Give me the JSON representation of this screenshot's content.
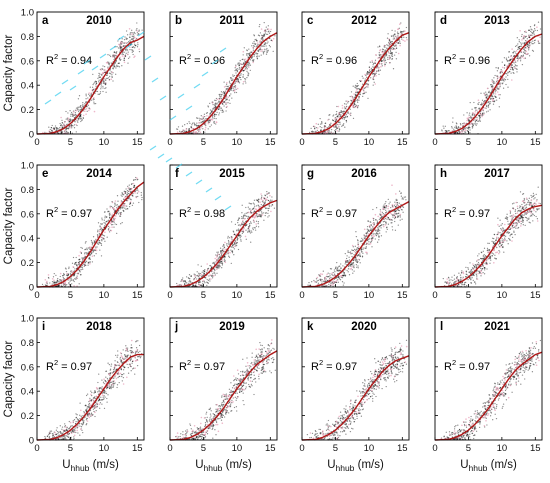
{
  "chart_data": {
    "type": "scatter",
    "layout": "4x3 grid of panels",
    "shared_xlabel_main": "U",
    "shared_xlabel_sub": "hhub",
    "shared_xlabel_unit": "(m/s)",
    "shared_ylabel": "Capacity factor",
    "xlim": [
      0,
      16
    ],
    "ylim": [
      0,
      1.0
    ],
    "x_ticks": [
      0,
      5,
      10,
      15
    ],
    "y_ticks": [
      "0",
      "0.2",
      "0.4",
      "0.6",
      "0.8",
      "1.0"
    ],
    "grid": false,
    "colors": {
      "points": "#000000",
      "points_secondary": "#e8a0b8",
      "curve": "#b01818",
      "highlight": "#33ccee"
    },
    "r2_prefix": "R",
    "r2_exp": "2",
    "curve_x": [
      0,
      2,
      3,
      4,
      5,
      6,
      7,
      8,
      9,
      10,
      11,
      12,
      13,
      14,
      15,
      16
    ],
    "panels": [
      {
        "letter": "a",
        "year": "2010",
        "r2_value": " = 0.94",
        "curve_y": [
          0,
          0.005,
          0.02,
          0.045,
          0.085,
          0.14,
          0.21,
          0.29,
          0.38,
          0.47,
          0.55,
          0.63,
          0.7,
          0.75,
          0.77,
          0.8
        ]
      },
      {
        "letter": "b",
        "year": "2011",
        "r2_value": " = 0.96",
        "curve_y": [
          0,
          0.005,
          0.02,
          0.045,
          0.085,
          0.14,
          0.21,
          0.29,
          0.38,
          0.47,
          0.55,
          0.63,
          0.7,
          0.76,
          0.8,
          0.83
        ]
      },
      {
        "letter": "c",
        "year": "2012",
        "r2_value": " = 0.96",
        "curve_y": [
          0,
          0.005,
          0.02,
          0.045,
          0.085,
          0.14,
          0.21,
          0.29,
          0.38,
          0.47,
          0.55,
          0.63,
          0.7,
          0.76,
          0.81,
          0.83
        ]
      },
      {
        "letter": "d",
        "year": "2013",
        "r2_value": " = 0.96",
        "curve_y": [
          0,
          0.005,
          0.02,
          0.045,
          0.085,
          0.14,
          0.21,
          0.29,
          0.38,
          0.47,
          0.55,
          0.63,
          0.7,
          0.76,
          0.8,
          0.82
        ]
      },
      {
        "letter": "e",
        "year": "2014",
        "r2_value": " = 0.97",
        "curve_y": [
          0,
          0.005,
          0.02,
          0.045,
          0.085,
          0.14,
          0.21,
          0.29,
          0.38,
          0.47,
          0.55,
          0.63,
          0.7,
          0.76,
          0.82,
          0.86
        ]
      },
      {
        "letter": "f",
        "year": "2015",
        "r2_value": " = 0.98",
        "curve_y": [
          0,
          0.005,
          0.02,
          0.045,
          0.08,
          0.13,
          0.19,
          0.26,
          0.34,
          0.42,
          0.5,
          0.57,
          0.62,
          0.66,
          0.69,
          0.71
        ]
      },
      {
        "letter": "g",
        "year": "2016",
        "r2_value": " = 0.97",
        "curve_y": [
          0,
          0.005,
          0.02,
          0.045,
          0.08,
          0.13,
          0.19,
          0.26,
          0.34,
          0.42,
          0.49,
          0.56,
          0.61,
          0.64,
          0.67,
          0.7
        ]
      },
      {
        "letter": "h",
        "year": "2017",
        "r2_value": " = 0.97",
        "curve_y": [
          0,
          0.005,
          0.02,
          0.045,
          0.08,
          0.13,
          0.19,
          0.26,
          0.34,
          0.42,
          0.49,
          0.56,
          0.61,
          0.64,
          0.66,
          0.67
        ]
      },
      {
        "letter": "i",
        "year": "2018",
        "r2_value": " = 0.97",
        "curve_y": [
          0,
          0.005,
          0.02,
          0.045,
          0.08,
          0.13,
          0.19,
          0.26,
          0.34,
          0.42,
          0.5,
          0.57,
          0.63,
          0.68,
          0.7,
          0.7
        ]
      },
      {
        "letter": "j",
        "year": "2019",
        "r2_value": " = 0.97",
        "curve_y": [
          0,
          0.005,
          0.02,
          0.045,
          0.08,
          0.13,
          0.19,
          0.26,
          0.34,
          0.42,
          0.49,
          0.56,
          0.62,
          0.66,
          0.7,
          0.73
        ]
      },
      {
        "letter": "k",
        "year": "2020",
        "r2_value": " = 0.97",
        "curve_y": [
          0,
          0.005,
          0.02,
          0.045,
          0.08,
          0.13,
          0.19,
          0.26,
          0.34,
          0.42,
          0.49,
          0.56,
          0.61,
          0.65,
          0.67,
          0.69
        ]
      },
      {
        "letter": "l",
        "year": "2021",
        "r2_value": " = 0.97",
        "curve_y": [
          0,
          0.005,
          0.02,
          0.045,
          0.08,
          0.13,
          0.19,
          0.26,
          0.34,
          0.42,
          0.5,
          0.57,
          0.62,
          0.66,
          0.7,
          0.72
        ]
      }
    ]
  }
}
